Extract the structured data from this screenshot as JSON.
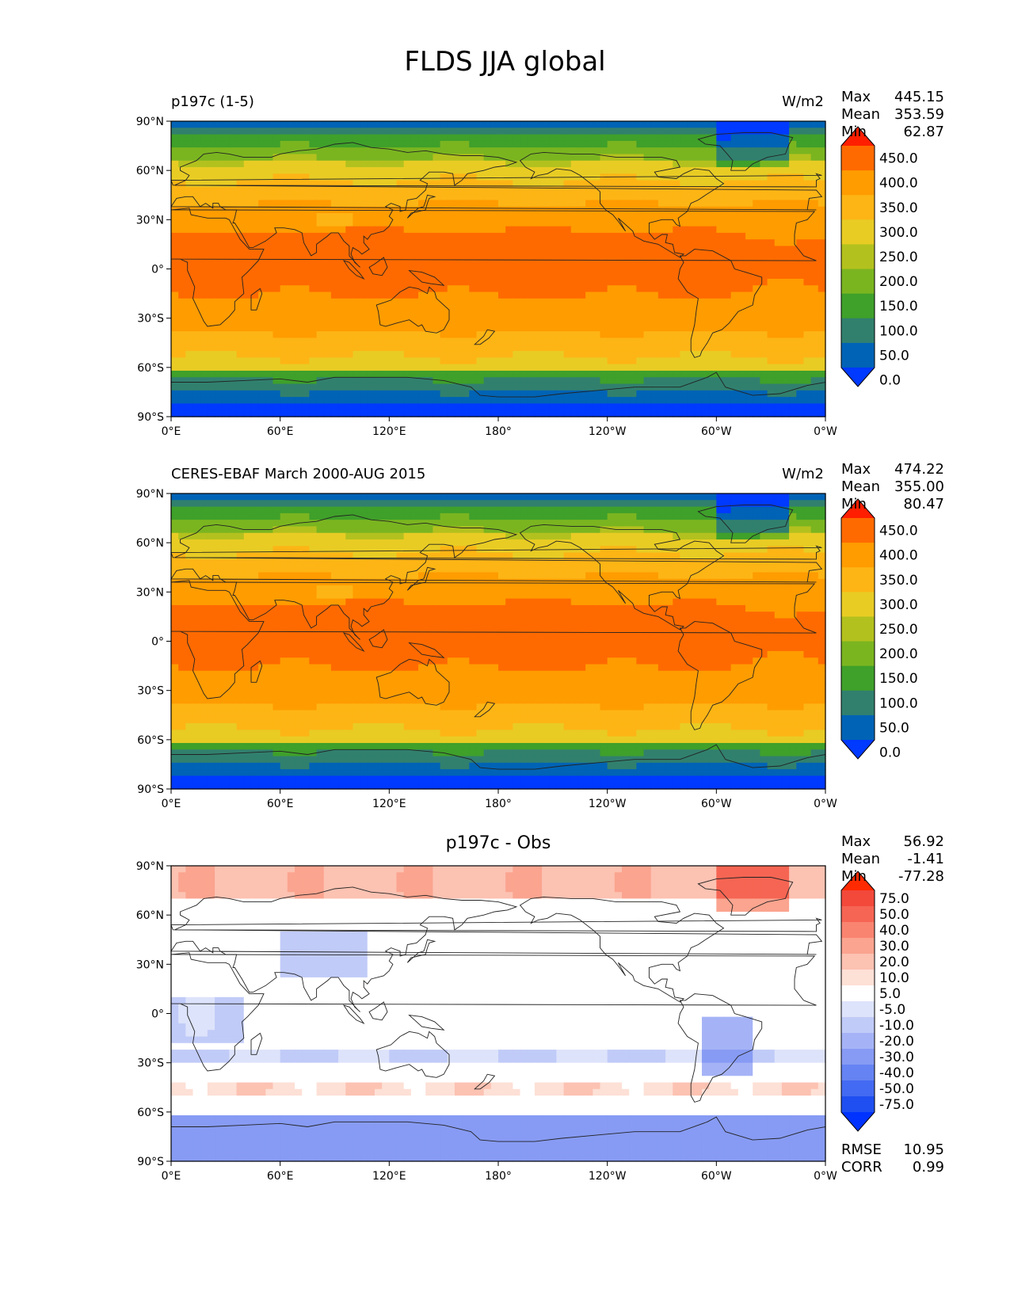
{
  "figure": {
    "title": "FLDS JJA global"
  },
  "chart_data": [
    {
      "type": "heatmap",
      "title": "p197c (1-5)",
      "units": "W/m2",
      "stats": [
        {
          "label": "Max",
          "value": "445.15"
        },
        {
          "label": "Mean",
          "value": "353.59"
        },
        {
          "label": "Min",
          "value": "62.87"
        }
      ],
      "lat_ticks": [
        "90°N",
        "60°N",
        "30°N",
        "0°",
        "30°S",
        "60°S",
        "90°S"
      ],
      "lon_ticks": [
        "0°E",
        "60°E",
        "120°E",
        "180°",
        "120°W",
        "60°W",
        "0°W"
      ],
      "colorbar": {
        "labels": [
          "450.0",
          "400.0",
          "350.0",
          "300.0",
          "250.0",
          "200.0",
          "150.0",
          "100.0",
          "50.0",
          "0.0"
        ],
        "colors": [
          "#ff1f00",
          "#ff6a00",
          "#ff9c00",
          "#fdb515",
          "#e8cc24",
          "#b3c11e",
          "#7ab520",
          "#3fa02a",
          "#31806e",
          "#0063b5",
          "#0039ff"
        ]
      },
      "grid": false
    },
    {
      "type": "heatmap",
      "title": "CERES-EBAF March 2000-AUG 2015",
      "units": "W/m2",
      "stats": [
        {
          "label": "Max",
          "value": "474.22"
        },
        {
          "label": "Mean",
          "value": "355.00"
        },
        {
          "label": "Min",
          "value": "80.47"
        }
      ],
      "lat_ticks": [
        "90°N",
        "60°N",
        "30°N",
        "0°",
        "30°S",
        "60°S",
        "90°S"
      ],
      "lon_ticks": [
        "0°E",
        "60°E",
        "120°E",
        "180°",
        "120°W",
        "60°W",
        "0°W"
      ],
      "colorbar": {
        "labels": [
          "450.0",
          "400.0",
          "350.0",
          "300.0",
          "250.0",
          "200.0",
          "150.0",
          "100.0",
          "50.0",
          "0.0"
        ],
        "colors": [
          "#ff1f00",
          "#ff6a00",
          "#ff9c00",
          "#fdb515",
          "#e8cc24",
          "#b3c11e",
          "#7ab520",
          "#3fa02a",
          "#31806e",
          "#0063b5",
          "#0039ff"
        ]
      },
      "grid": false
    },
    {
      "type": "heatmap",
      "title": "p197c - Obs",
      "stats": [
        {
          "label": "Max",
          "value": "56.92"
        },
        {
          "label": "Mean",
          "value": "-1.41"
        },
        {
          "label": "Min",
          "value": "-77.28"
        }
      ],
      "metrics": [
        {
          "label": "RMSE",
          "value": "10.95"
        },
        {
          "label": "CORR",
          "value": "0.99"
        }
      ],
      "lat_ticks": [
        "90°N",
        "60°N",
        "30°N",
        "0°",
        "30°S",
        "60°S",
        "90°S"
      ],
      "lon_ticks": [
        "0°E",
        "60°E",
        "120°E",
        "180°",
        "120°W",
        "60°W",
        "0°W"
      ],
      "colorbar": {
        "labels": [
          "75.0",
          "50.0",
          "40.0",
          "30.0",
          "20.0",
          "10.0",
          "5.0",
          "-5.0",
          "-10.0",
          "-20.0",
          "-30.0",
          "-40.0",
          "-50.0",
          "-75.0"
        ],
        "colors": [
          "#ff2a00",
          "#f2493b",
          "#f66553",
          "#f98470",
          "#fba48f",
          "#fcc2b2",
          "#fde0d6",
          "#ffffff",
          "#dde3fa",
          "#c1cbf8",
          "#a5b3f6",
          "#879bf4",
          "#6583f2",
          "#436af2",
          "#1f4ff0",
          "#0033ff"
        ]
      },
      "grid": false
    }
  ]
}
